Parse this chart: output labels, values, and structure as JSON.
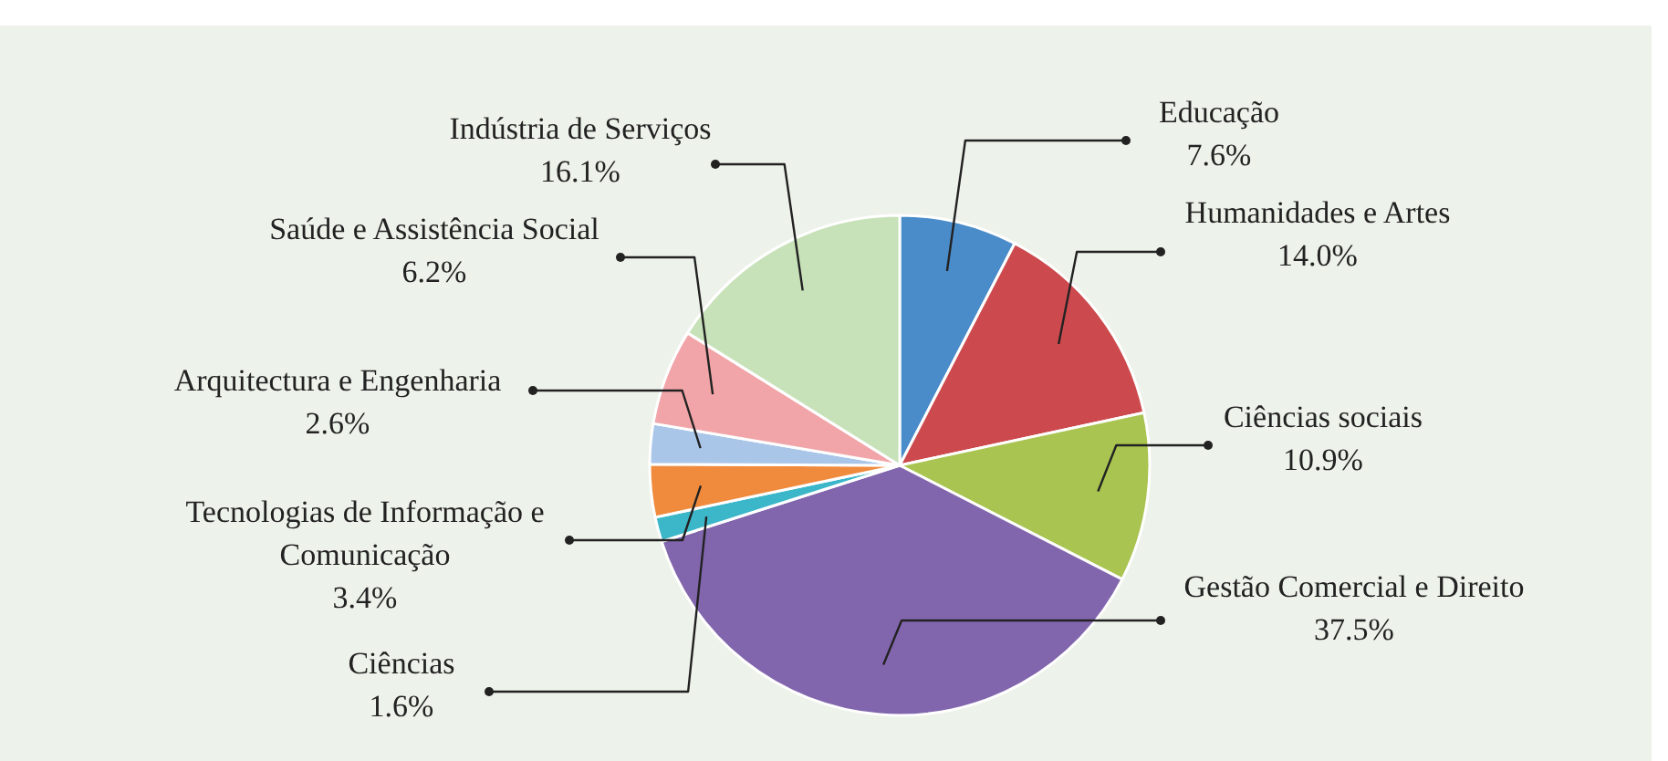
{
  "chart_data": {
    "type": "pie",
    "categories": [
      "Educação",
      "Humanidades e Artes",
      "Ciências sociais",
      "Gestão Comercial e Direito",
      "Ciências",
      "Tecnologias de Informação e Comunicação",
      "Arquitectura e Engenharia",
      "Saúde e Assistência Social",
      "Indústria de Serviços"
    ],
    "values": [
      7.6,
      14.0,
      10.9,
      37.5,
      1.6,
      3.4,
      2.6,
      6.2,
      16.1
    ],
    "value_labels": [
      "7.6%",
      "14.0%",
      "10.9%",
      "37.5%",
      "1.6%",
      "3.4%",
      "2.6%",
      "6.2%",
      "16.1%"
    ],
    "colors": [
      "#4a8bc9",
      "#cc4a4d",
      "#a9c451",
      "#8266ad",
      "#3cb6c9",
      "#f08b3e",
      "#a9c5e8",
      "#f2a5a8",
      "#c7e1b8"
    ],
    "legend": false
  }
}
